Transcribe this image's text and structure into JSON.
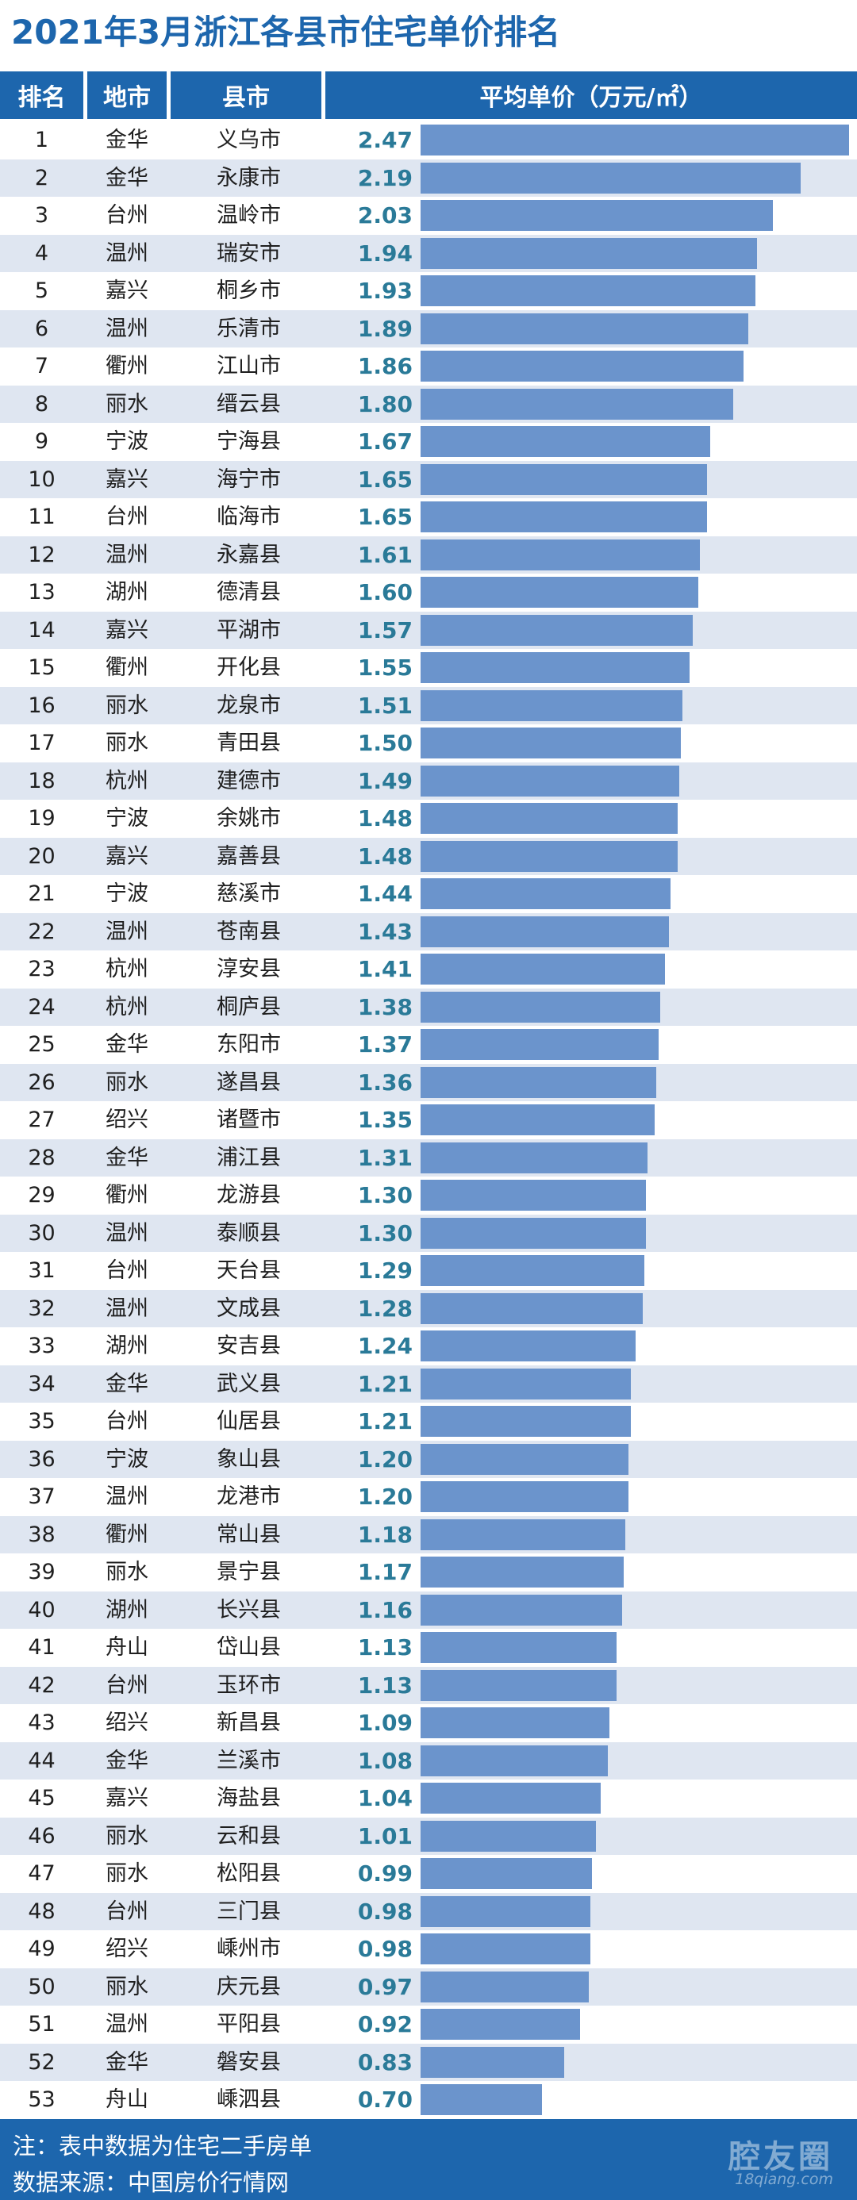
{
  "title": "2021年3月浙江各县市住宅单价排名",
  "headers": {
    "rank": "排名",
    "city": "地市",
    "county": "县市",
    "price": "平均单价（万元/㎡）"
  },
  "colors": {
    "header_bg": "#1d66ad",
    "row_alt": "#dfe6f1",
    "bar": "#6b94cc",
    "value_text": "#2a7a98"
  },
  "chart_data": {
    "type": "bar",
    "title": "2021年3月浙江各县市住宅单价排名",
    "ylabel": "平均单价（万元/㎡）",
    "orientation": "horizontal",
    "rows": [
      {
        "rank": "1",
        "city": "金华",
        "county": "义乌市",
        "value": 2.47
      },
      {
        "rank": "2",
        "city": "金华",
        "county": "永康市",
        "value": 2.19
      },
      {
        "rank": "3",
        "city": "台州",
        "county": "温岭市",
        "value": 2.03
      },
      {
        "rank": "4",
        "city": "温州",
        "county": "瑞安市",
        "value": 1.94
      },
      {
        "rank": "5",
        "city": "嘉兴",
        "county": "桐乡市",
        "value": 1.93
      },
      {
        "rank": "6",
        "city": "温州",
        "county": "乐清市",
        "value": 1.89
      },
      {
        "rank": "7",
        "city": "衢州",
        "county": "江山市",
        "value": 1.86
      },
      {
        "rank": "8",
        "city": "丽水",
        "county": "缙云县",
        "value": 1.8
      },
      {
        "rank": "9",
        "city": "宁波",
        "county": "宁海县",
        "value": 1.67
      },
      {
        "rank": "10",
        "city": "嘉兴",
        "county": "海宁市",
        "value": 1.65
      },
      {
        "rank": "11",
        "city": "台州",
        "county": "临海市",
        "value": 1.65
      },
      {
        "rank": "12",
        "city": "温州",
        "county": "永嘉县",
        "value": 1.61
      },
      {
        "rank": "13",
        "city": "湖州",
        "county": "德清县",
        "value": 1.6
      },
      {
        "rank": "14",
        "city": "嘉兴",
        "county": "平湖市",
        "value": 1.57
      },
      {
        "rank": "15",
        "city": "衢州",
        "county": "开化县",
        "value": 1.55
      },
      {
        "rank": "16",
        "city": "丽水",
        "county": "龙泉市",
        "value": 1.51
      },
      {
        "rank": "17",
        "city": "丽水",
        "county": "青田县",
        "value": 1.5
      },
      {
        "rank": "18",
        "city": "杭州",
        "county": "建德市",
        "value": 1.49
      },
      {
        "rank": "19",
        "city": "宁波",
        "county": "余姚市",
        "value": 1.48
      },
      {
        "rank": "20",
        "city": "嘉兴",
        "county": "嘉善县",
        "value": 1.48
      },
      {
        "rank": "21",
        "city": "宁波",
        "county": "慈溪市",
        "value": 1.44
      },
      {
        "rank": "22",
        "city": "温州",
        "county": "苍南县",
        "value": 1.43
      },
      {
        "rank": "23",
        "city": "杭州",
        "county": "淳安县",
        "value": 1.41
      },
      {
        "rank": "24",
        "city": "杭州",
        "county": "桐庐县",
        "value": 1.38
      },
      {
        "rank": "25",
        "city": "金华",
        "county": "东阳市",
        "value": 1.37
      },
      {
        "rank": "26",
        "city": "丽水",
        "county": "遂昌县",
        "value": 1.36
      },
      {
        "rank": "27",
        "city": "绍兴",
        "county": "诸暨市",
        "value": 1.35
      },
      {
        "rank": "28",
        "city": "金华",
        "county": "浦江县",
        "value": 1.31
      },
      {
        "rank": "29",
        "city": "衢州",
        "county": "龙游县",
        "value": 1.3
      },
      {
        "rank": "30",
        "city": "温州",
        "county": "泰顺县",
        "value": 1.3
      },
      {
        "rank": "31",
        "city": "台州",
        "county": "天台县",
        "value": 1.29
      },
      {
        "rank": "32",
        "city": "温州",
        "county": "文成县",
        "value": 1.28
      },
      {
        "rank": "33",
        "city": "湖州",
        "county": "安吉县",
        "value": 1.24
      },
      {
        "rank": "34",
        "city": "金华",
        "county": "武义县",
        "value": 1.21
      },
      {
        "rank": "35",
        "city": "台州",
        "county": "仙居县",
        "value": 1.21
      },
      {
        "rank": "36",
        "city": "宁波",
        "county": "象山县",
        "value": 1.2
      },
      {
        "rank": "37",
        "city": "温州",
        "county": "龙港市",
        "value": 1.2
      },
      {
        "rank": "38",
        "city": "衢州",
        "county": "常山县",
        "value": 1.18
      },
      {
        "rank": "39",
        "city": "丽水",
        "county": "景宁县",
        "value": 1.17
      },
      {
        "rank": "40",
        "city": "湖州",
        "county": "长兴县",
        "value": 1.16
      },
      {
        "rank": "41",
        "city": "舟山",
        "county": "岱山县",
        "value": 1.13
      },
      {
        "rank": "42",
        "city": "台州",
        "county": "玉环市",
        "value": 1.13
      },
      {
        "rank": "43",
        "city": "绍兴",
        "county": "新昌县",
        "value": 1.09
      },
      {
        "rank": "44",
        "city": "金华",
        "county": "兰溪市",
        "value": 1.08
      },
      {
        "rank": "45",
        "city": "嘉兴",
        "county": "海盐县",
        "value": 1.04
      },
      {
        "rank": "46",
        "city": "丽水",
        "county": "云和县",
        "value": 1.01
      },
      {
        "rank": "47",
        "city": "丽水",
        "county": "松阳县",
        "value": 0.99
      },
      {
        "rank": "48",
        "city": "台州",
        "county": "三门县",
        "value": 0.98
      },
      {
        "rank": "49",
        "city": "绍兴",
        "county": "嵊州市",
        "value": 0.98
      },
      {
        "rank": "50",
        "city": "丽水",
        "county": "庆元县",
        "value": 0.97
      },
      {
        "rank": "51",
        "city": "温州",
        "county": "平阳县",
        "value": 0.92
      },
      {
        "rank": "52",
        "city": "金华",
        "county": "磐安县",
        "value": 0.83
      },
      {
        "rank": "53",
        "city": "舟山",
        "county": "嵊泗县",
        "value": 0.7
      }
    ]
  },
  "footer": {
    "note": "注：表中数据为住宅二手房单",
    "source": "数据来源：中国房价行情网",
    "watermark_name": "腔友圈",
    "watermark_url": "18qiang.com"
  }
}
